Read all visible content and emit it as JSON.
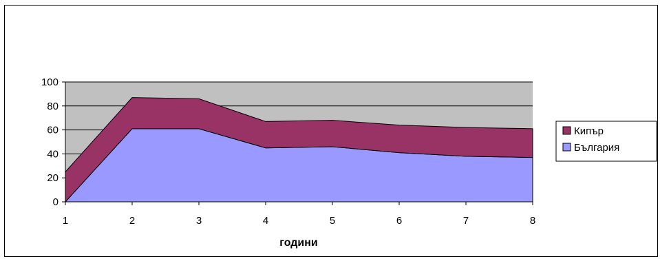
{
  "chart_data": {
    "type": "area",
    "stacked": true,
    "x": [
      1,
      2,
      3,
      4,
      5,
      6,
      7,
      8
    ],
    "xlabel": "години",
    "ylabel": "",
    "title": "",
    "ylim": [
      0,
      100
    ],
    "yticks": [
      0,
      20,
      40,
      60,
      80,
      100
    ],
    "grid": true,
    "legend_position": "right",
    "plot_background": "#c0c0c0",
    "series": [
      {
        "name": "България",
        "color": "#9999ff",
        "values": [
          0,
          61,
          61,
          45,
          46,
          41,
          38,
          37
        ]
      },
      {
        "name": "Кипър",
        "color": "#993366",
        "values": [
          25,
          26,
          25,
          22,
          22,
          23,
          24,
          24
        ]
      }
    ],
    "legend_order": [
      "Кипър",
      "България"
    ]
  }
}
